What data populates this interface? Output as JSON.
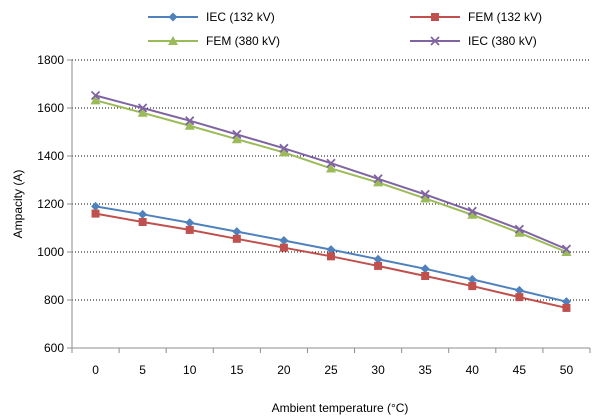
{
  "chart_data": {
    "type": "line",
    "title": "",
    "xlabel": "Ambient temperature (°C)",
    "ylabel": "Ampacity (A)",
    "ylim": [
      600,
      1800
    ],
    "yticks": [
      600,
      800,
      1000,
      1200,
      1400,
      1600,
      1800
    ],
    "x": [
      0,
      5,
      10,
      15,
      20,
      25,
      30,
      35,
      40,
      45,
      50
    ],
    "grid": "horizontal dotted",
    "legend_position": "top",
    "series": [
      {
        "name": "IEC (132 kV)",
        "color": "#4F81BD",
        "marker": "diamond",
        "values": [
          1190,
          1157,
          1122,
          1085,
          1048,
          1010,
          970,
          930,
          886,
          840,
          793
        ]
      },
      {
        "name": "FEM (132 kV)",
        "color": "#C0504D",
        "marker": "square",
        "values": [
          1160,
          1125,
          1092,
          1055,
          1018,
          982,
          942,
          900,
          858,
          812,
          767
        ]
      },
      {
        "name": "FEM (380 kV)",
        "color": "#9BBB59",
        "marker": "triangle",
        "values": [
          1632,
          1580,
          1526,
          1470,
          1415,
          1348,
          1290,
          1223,
          1155,
          1080,
          1000
        ]
      },
      {
        "name": "IEC (380 kV)",
        "color": "#8064A2",
        "marker": "x",
        "values": [
          1652,
          1600,
          1547,
          1490,
          1432,
          1370,
          1305,
          1240,
          1170,
          1095,
          1012
        ]
      }
    ]
  }
}
